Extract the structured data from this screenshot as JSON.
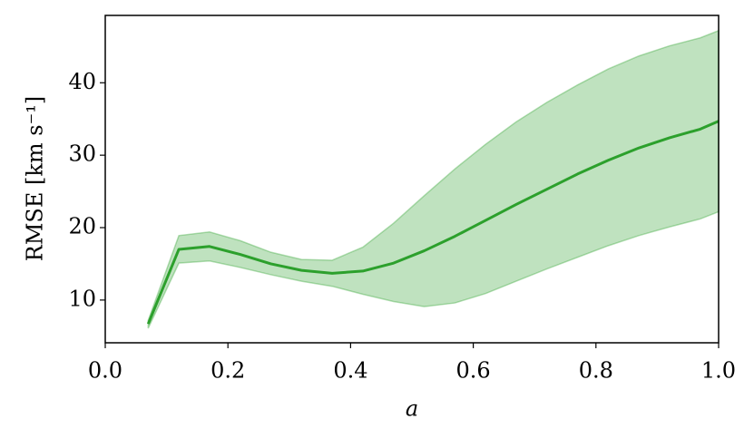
{
  "chart_data": {
    "type": "line",
    "x_label": "a",
    "y_label": "RMSE [km s⁻¹]",
    "x": [
      0.07,
      0.12,
      0.17,
      0.22,
      0.27,
      0.32,
      0.37,
      0.42,
      0.47,
      0.52,
      0.57,
      0.62,
      0.67,
      0.72,
      0.77,
      0.82,
      0.87,
      0.92,
      0.97,
      1.0
    ],
    "series": [
      {
        "color": "#2ca02c",
        "band_color": "#2ca02c",
        "values": [
          6.7,
          17.0,
          17.4,
          16.3,
          15.0,
          14.1,
          13.7,
          14.0,
          15.1,
          16.8,
          18.8,
          21.0,
          23.2,
          25.3,
          27.4,
          29.3,
          31.0,
          32.4,
          33.6,
          34.7
        ],
        "upper": [
          7.2,
          18.9,
          19.4,
          18.2,
          16.6,
          15.6,
          15.5,
          17.3,
          20.6,
          24.4,
          28.1,
          31.5,
          34.6,
          37.3,
          39.7,
          41.9,
          43.7,
          45.1,
          46.2,
          47.2
        ],
        "lower": [
          6.1,
          15.1,
          15.4,
          14.5,
          13.5,
          12.6,
          11.9,
          10.8,
          9.8,
          9.1,
          9.6,
          10.9,
          12.6,
          14.3,
          15.9,
          17.5,
          18.9,
          20.1,
          21.2,
          22.2
        ]
      }
    ],
    "xlim": [
      0,
      1
    ],
    "ylim": [
      4.1,
      49.3
    ],
    "xticks": [
      {
        "value": 0,
        "label": "0.0"
      },
      0.2,
      0.4,
      0.6,
      0.8,
      {
        "value": 1,
        "label": "1.0"
      }
    ],
    "yticks": [
      10,
      20,
      30,
      40
    ],
    "grid": false
  }
}
